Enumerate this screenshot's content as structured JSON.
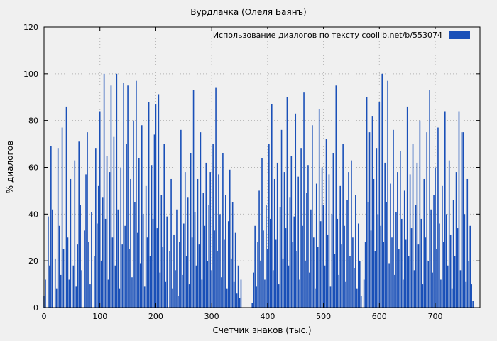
{
  "title": "Вурдлачка (Олеля Баянъ)",
  "legend": {
    "label": "Использование диалогов по тексту  coollib.net/b/553074",
    "swatch_color": "#1a50b8"
  },
  "chart_data": {
    "type": "bar",
    "title": "Вурдлачка (Олеля Баянъ)",
    "xlabel": "Счетчик знаков (тыс.)",
    "ylabel": "% диалогов",
    "xlim": [
      0,
      780
    ],
    "ylim": [
      0,
      120
    ],
    "x_ticks": [
      0,
      100,
      200,
      300,
      400,
      500,
      600,
      700
    ],
    "y_ticks": [
      0,
      20,
      40,
      60,
      80,
      100,
      120
    ],
    "grid": true,
    "legend_position": "top-right",
    "bar_color": "#1a50b8",
    "background": "#f0f0f0",
    "x_start": 0,
    "x_step": 2.5,
    "values": [
      5,
      12,
      0,
      39,
      18,
      69,
      42,
      0,
      21,
      8,
      68,
      35,
      14,
      77,
      25,
      0,
      86,
      30,
      12,
      55,
      0,
      18,
      63,
      9,
      27,
      71,
      44,
      16,
      0,
      33,
      57,
      75,
      28,
      10,
      41,
      0,
      22,
      68,
      36,
      52,
      84,
      20,
      47,
      100,
      38,
      65,
      12,
      58,
      95,
      30,
      73,
      18,
      100,
      42,
      8,
      60,
      27,
      96,
      35,
      70,
      95,
      25,
      55,
      13,
      80,
      45,
      97,
      32,
      64,
      19,
      78,
      40,
      9,
      52,
      30,
      88,
      22,
      61,
      38,
      74,
      87,
      34,
      91,
      15,
      48,
      26,
      70,
      11,
      39,
      0,
      24,
      55,
      8,
      31,
      16,
      42,
      5,
      28,
      76,
      14,
      36,
      58,
      22,
      47,
      10,
      66,
      30,
      93,
      41,
      18,
      55,
      27,
      75,
      12,
      49,
      35,
      62,
      20,
      44,
      58,
      16,
      70,
      33,
      94,
      24,
      57,
      40,
      13,
      66,
      29,
      48,
      8,
      37,
      59,
      21,
      45,
      11,
      32,
      6,
      18,
      4,
      12,
      0,
      0,
      0,
      0,
      0,
      0,
      0,
      2,
      15,
      35,
      9,
      28,
      50,
      20,
      64,
      33,
      12,
      44,
      25,
      70,
      38,
      87,
      16,
      55,
      29,
      62,
      10,
      43,
      76,
      21,
      58,
      34,
      90,
      18,
      47,
      65,
      28,
      39,
      83,
      24,
      56,
      12,
      68,
      35,
      92,
      20,
      49,
      61,
      15,
      42,
      78,
      30,
      8,
      53,
      26,
      85,
      37,
      60,
      44,
      18,
      72,
      31,
      57,
      9,
      40,
      66,
      23,
      95,
      38,
      14,
      52,
      27,
      70,
      35,
      11,
      46,
      58,
      22,
      63,
      30,
      17,
      48,
      8,
      36,
      20,
      5,
      0,
      12,
      28,
      90,
      45,
      75,
      33,
      82,
      55,
      24,
      68,
      40,
      88,
      35,
      100,
      28,
      62,
      45,
      97,
      19,
      53,
      30,
      76,
      14,
      41,
      58,
      25,
      67,
      38,
      12,
      50,
      29,
      86,
      22,
      57,
      34,
      70,
      16,
      44,
      62,
      27,
      80,
      38,
      10,
      55,
      30,
      75,
      20,
      93,
      42,
      15,
      48,
      60,
      25,
      77,
      36,
      12,
      52,
      28,
      84,
      40,
      18,
      63,
      31,
      8,
      46,
      22,
      58,
      34,
      84,
      16,
      75,
      75,
      40,
      11,
      55,
      20,
      35,
      10,
      3
    ]
  }
}
